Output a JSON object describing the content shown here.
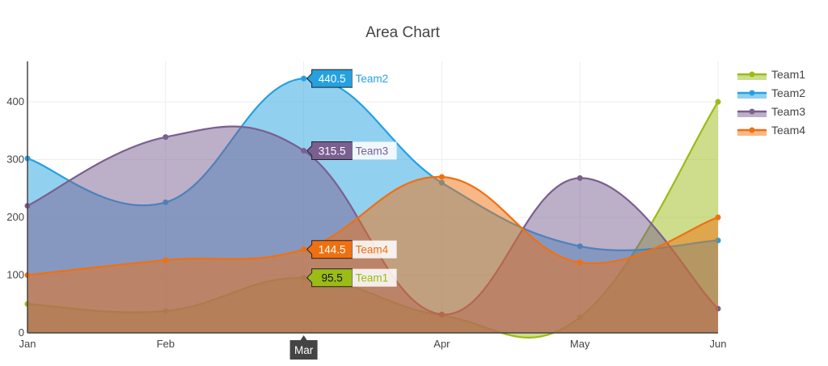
{
  "chart_data": {
    "type": "area",
    "title": "Area Chart",
    "xlabel": "",
    "ylabel": "",
    "categories": [
      "Jan",
      "Feb",
      "Mar",
      "Apr",
      "May",
      "Jun"
    ],
    "ylim": [
      0,
      470
    ],
    "yticks": [
      0,
      100,
      200,
      300,
      400
    ],
    "grid": true,
    "legend_position": "top-right",
    "series": [
      {
        "name": "Team1",
        "color": "#9bbb17",
        "values": [
          50,
          38,
          95.5,
          30,
          27,
          400
        ]
      },
      {
        "name": "Team2",
        "color": "#25a1e0",
        "values": [
          302,
          226,
          440.5,
          260,
          150,
          160
        ]
      },
      {
        "name": "Team3",
        "color": "#7a5f91",
        "values": [
          220,
          339,
          315.5,
          32,
          268,
          42
        ]
      },
      {
        "name": "Team4",
        "color": "#f07010",
        "values": [
          100,
          126,
          144.5,
          270,
          122,
          200
        ]
      }
    ],
    "hover": {
      "x_label": "Mar",
      "items": [
        {
          "series": "Team2",
          "value": "440.5"
        },
        {
          "series": "Team3",
          "value": "315.5"
        },
        {
          "series": "Team4",
          "value": "144.5"
        },
        {
          "series": "Team1",
          "value": "95.5"
        }
      ]
    }
  }
}
